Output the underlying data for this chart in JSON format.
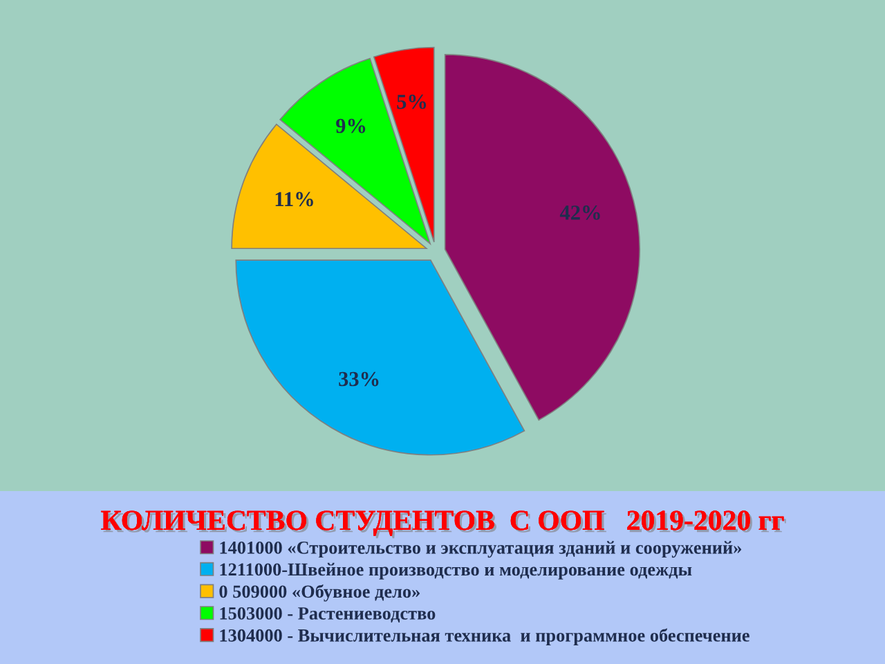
{
  "chart_data": {
    "type": "pie",
    "title": "КОЛИЧЕСТВО СТУДЕНТОВ  С ООП   2019-2020 гг",
    "categories": [
      "1401000 «Строительство и эксплуатация зданий и сооружений»",
      "1211000-Швейное производство и моделирование одежды",
      "0 509000 «Обувное дело»",
      "1503000 - Растениеводство",
      "1304000 - Вычислительная техника  и программное обеспечение"
    ],
    "values": [
      42,
      33,
      11,
      9,
      5
    ],
    "colors": [
      "#8e0b62",
      "#00b0f0",
      "#ffc000",
      "#00ff00",
      "#ff0000"
    ],
    "value_labels": [
      "42%",
      "33%",
      "11%",
      "9%",
      "5%"
    ],
    "legend": "bottom"
  }
}
